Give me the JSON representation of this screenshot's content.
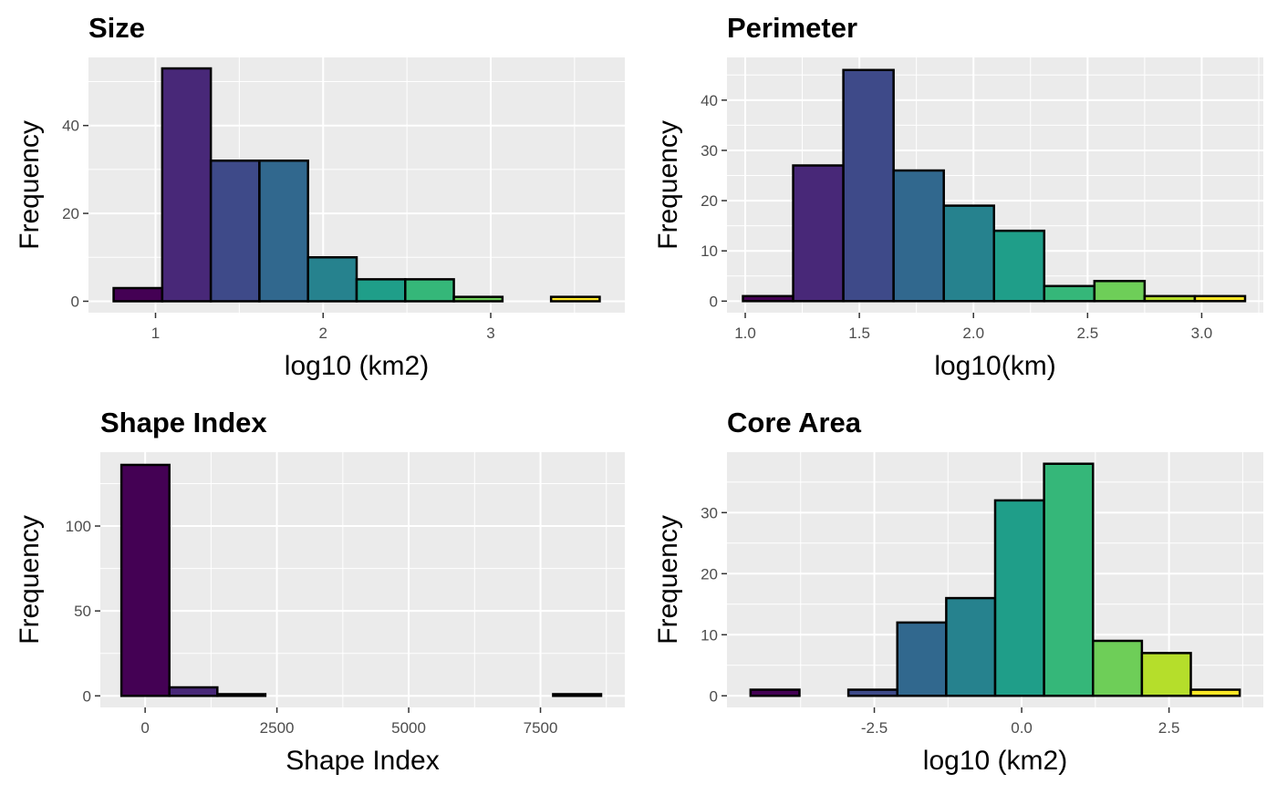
{
  "chart_data": [
    {
      "type": "bar",
      "title": "Size",
      "xlabel": "log10 (km2)",
      "ylabel": "Frequency",
      "xlim": [
        0.6,
        3.8
      ],
      "ylim": [
        -2.6,
        55.5
      ],
      "xticks": [
        1,
        2,
        3
      ],
      "xtick_labels": [
        "1",
        "2",
        "3"
      ],
      "yticks": [
        0,
        20,
        40
      ],
      "ytick_labels": [
        "0",
        "20",
        "40"
      ],
      "bins": [
        {
          "x0": 0.75,
          "x1": 1.04,
          "count": 3,
          "color": "#440154"
        },
        {
          "x0": 1.04,
          "x1": 1.33,
          "count": 53,
          "color": "#482878"
        },
        {
          "x0": 1.33,
          "x1": 1.62,
          "count": 32,
          "color": "#3e4a89"
        },
        {
          "x0": 1.62,
          "x1": 1.91,
          "count": 32,
          "color": "#31688e"
        },
        {
          "x0": 1.91,
          "x1": 2.2,
          "count": 10,
          "color": "#26828e"
        },
        {
          "x0": 2.2,
          "x1": 2.49,
          "count": 5,
          "color": "#1f9e89"
        },
        {
          "x0": 2.49,
          "x1": 2.78,
          "count": 5,
          "color": "#35b779"
        },
        {
          "x0": 2.78,
          "x1": 3.07,
          "count": 1,
          "color": "#6ece58"
        },
        {
          "x0": 3.07,
          "x1": 3.36,
          "count": 0,
          "color": "#b5de2b"
        },
        {
          "x0": 3.36,
          "x1": 3.65,
          "count": 1,
          "color": "#fde725"
        }
      ]
    },
    {
      "type": "bar",
      "title": "Perimeter",
      "xlabel": "log10(km)",
      "ylabel": "Frequency",
      "xlim": [
        0.92,
        3.27
      ],
      "ylim": [
        -2.3,
        48.5
      ],
      "xticks": [
        1.0,
        1.5,
        2.0,
        2.5,
        3.0
      ],
      "xtick_labels": [
        "1.0",
        "1.5",
        "2.0",
        "2.5",
        "3.0"
      ],
      "yticks": [
        0,
        10,
        20,
        30,
        40
      ],
      "ytick_labels": [
        "0",
        "10",
        "20",
        "30",
        "40"
      ],
      "bins": [
        {
          "x0": 0.99,
          "x1": 1.21,
          "count": 1,
          "color": "#440154"
        },
        {
          "x0": 1.21,
          "x1": 1.43,
          "count": 27,
          "color": "#482878"
        },
        {
          "x0": 1.43,
          "x1": 1.65,
          "count": 46,
          "color": "#3e4a89"
        },
        {
          "x0": 1.65,
          "x1": 1.87,
          "count": 26,
          "color": "#31688e"
        },
        {
          "x0": 1.87,
          "x1": 2.09,
          "count": 19,
          "color": "#26828e"
        },
        {
          "x0": 2.09,
          "x1": 2.31,
          "count": 14,
          "color": "#1f9e89"
        },
        {
          "x0": 2.31,
          "x1": 2.53,
          "count": 3,
          "color": "#35b779"
        },
        {
          "x0": 2.53,
          "x1": 2.75,
          "count": 4,
          "color": "#6ece58"
        },
        {
          "x0": 2.75,
          "x1": 2.97,
          "count": 1,
          "color": "#b5de2b"
        },
        {
          "x0": 2.97,
          "x1": 3.19,
          "count": 1,
          "color": "#fde725"
        }
      ]
    },
    {
      "type": "bar",
      "title": "Shape Index",
      "xlabel": "Shape Index",
      "ylabel": "Frequency",
      "xlim": [
        -850,
        9100
      ],
      "ylim": [
        -6.8,
        143.5
      ],
      "xticks": [
        0,
        2500,
        5000,
        7500
      ],
      "xtick_labels": [
        "0",
        "2500",
        "5000",
        "7500"
      ],
      "yticks": [
        0,
        50,
        100
      ],
      "ytick_labels": [
        "0",
        "50",
        "100"
      ],
      "bins": [
        {
          "x0": -450,
          "x1": 460,
          "count": 136,
          "color": "#440154"
        },
        {
          "x0": 460,
          "x1": 1370,
          "count": 5,
          "color": "#482878"
        },
        {
          "x0": 1370,
          "x1": 2280,
          "count": 1,
          "color": "#3e4a89"
        },
        {
          "x0": 2280,
          "x1": 3190,
          "count": 0,
          "color": "#31688e"
        },
        {
          "x0": 3190,
          "x1": 4100,
          "count": 0,
          "color": "#26828e"
        },
        {
          "x0": 4100,
          "x1": 5010,
          "count": 0,
          "color": "#1f9e89"
        },
        {
          "x0": 5010,
          "x1": 5920,
          "count": 0,
          "color": "#35b779"
        },
        {
          "x0": 5920,
          "x1": 6830,
          "count": 0,
          "color": "#6ece58"
        },
        {
          "x0": 6830,
          "x1": 7740,
          "count": 0,
          "color": "#b5de2b"
        },
        {
          "x0": 7740,
          "x1": 8650,
          "count": 1,
          "color": "#fde725"
        }
      ]
    },
    {
      "type": "bar",
      "title": "Core Area",
      "xlabel": "log10 (km2)",
      "ylabel": "Frequency",
      "xlim": [
        -5.0,
        4.1
      ],
      "ylim": [
        -1.9,
        39.9
      ],
      "xticks": [
        -2.5,
        0.0,
        2.5
      ],
      "xtick_labels": [
        "-2.5",
        "0.0",
        "2.5"
      ],
      "yticks": [
        0,
        10,
        20,
        30
      ],
      "ytick_labels": [
        "0",
        "10",
        "20",
        "30"
      ],
      "bins": [
        {
          "x0": -4.6,
          "x1": -3.77,
          "count": 1,
          "color": "#440154"
        },
        {
          "x0": -3.77,
          "x1": -2.94,
          "count": 0,
          "color": "#482878"
        },
        {
          "x0": -2.94,
          "x1": -2.11,
          "count": 1,
          "color": "#3e4a89"
        },
        {
          "x0": -2.11,
          "x1": -1.28,
          "count": 12,
          "color": "#31688e"
        },
        {
          "x0": -1.28,
          "x1": -0.45,
          "count": 16,
          "color": "#26828e"
        },
        {
          "x0": -0.45,
          "x1": 0.38,
          "count": 32,
          "color": "#1f9e89"
        },
        {
          "x0": 0.38,
          "x1": 1.21,
          "count": 38,
          "color": "#35b779"
        },
        {
          "x0": 1.21,
          "x1": 2.04,
          "count": 9,
          "color": "#6ece58"
        },
        {
          "x0": 2.04,
          "x1": 2.87,
          "count": 7,
          "color": "#b5de2b"
        },
        {
          "x0": 2.87,
          "x1": 3.7,
          "count": 1,
          "color": "#fde725"
        }
      ]
    }
  ]
}
